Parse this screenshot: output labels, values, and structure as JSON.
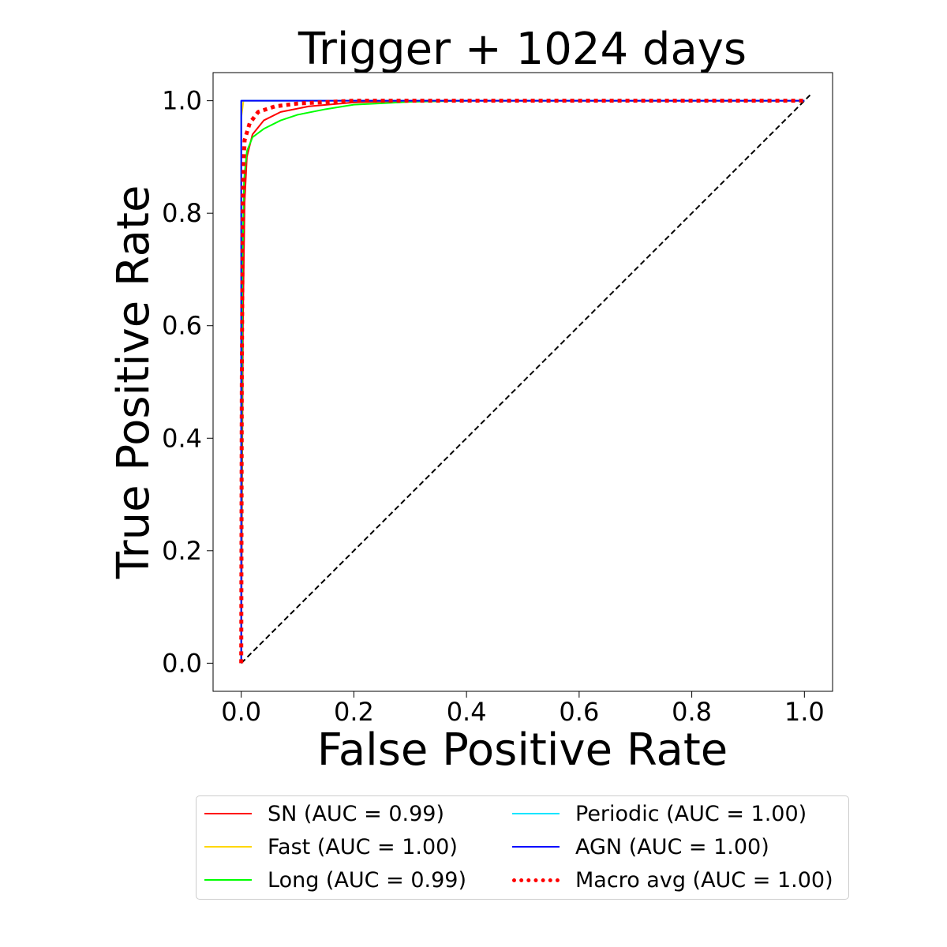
{
  "chart_data": {
    "type": "line",
    "title": "Trigger + 1024 days",
    "xlabel": "False Positive Rate",
    "ylabel": "True Positive Rate",
    "xlim": [
      -0.05,
      1.05
    ],
    "ylim": [
      -0.05,
      1.05
    ],
    "xticks": [
      0.0,
      0.2,
      0.4,
      0.6,
      0.8,
      1.0
    ],
    "xtick_labels": [
      "0.0",
      "0.2",
      "0.4",
      "0.6",
      "0.8",
      "1.0"
    ],
    "yticks": [
      0.0,
      0.2,
      0.4,
      0.6,
      0.8,
      1.0
    ],
    "ytick_labels": [
      "0.0",
      "0.2",
      "0.4",
      "0.6",
      "0.8",
      "1.0"
    ],
    "grid": false,
    "legend_position": "below",
    "series": [
      {
        "name": "SN (AUC = 0.99)",
        "color": "#ff0000",
        "style": "solid",
        "points": [
          [
            0,
            0
          ],
          [
            0.003,
            0.6
          ],
          [
            0.006,
            0.82
          ],
          [
            0.01,
            0.9
          ],
          [
            0.02,
            0.94
          ],
          [
            0.04,
            0.965
          ],
          [
            0.07,
            0.98
          ],
          [
            0.12,
            0.99
          ],
          [
            0.2,
            0.997
          ],
          [
            0.3,
            1.0
          ],
          [
            1.0,
            1.0
          ]
        ]
      },
      {
        "name": "Fast (AUC = 1.00)",
        "color": "#ffd700",
        "style": "solid",
        "points": [
          [
            0,
            0
          ],
          [
            0,
            0.97
          ],
          [
            0.004,
            1.0
          ],
          [
            1.0,
            1.0
          ]
        ]
      },
      {
        "name": "Long (AUC = 0.99)",
        "color": "#00ff00",
        "style": "solid",
        "points": [
          [
            0,
            0
          ],
          [
            0.002,
            0.7
          ],
          [
            0.005,
            0.86
          ],
          [
            0.01,
            0.91
          ],
          [
            0.02,
            0.935
          ],
          [
            0.04,
            0.95
          ],
          [
            0.07,
            0.965
          ],
          [
            0.1,
            0.975
          ],
          [
            0.15,
            0.985
          ],
          [
            0.2,
            0.993
          ],
          [
            0.3,
            0.998
          ],
          [
            0.4,
            1.0
          ],
          [
            1.0,
            1.0
          ]
        ]
      },
      {
        "name": "Periodic (AUC = 1.00)",
        "color": "#00e5ff",
        "style": "solid",
        "points": [
          [
            0,
            0
          ],
          [
            0,
            1.0
          ],
          [
            1.0,
            1.0
          ]
        ]
      },
      {
        "name": "AGN (AUC = 1.00)",
        "color": "#0000ff",
        "style": "solid",
        "points": [
          [
            0,
            0
          ],
          [
            0,
            1.0
          ],
          [
            1.0,
            1.0
          ]
        ]
      },
      {
        "name": "Macro avg (AUC = 1.00)",
        "color": "#ff0000",
        "style": "dotted",
        "points": [
          [
            0,
            0
          ],
          [
            0.001,
            0.5
          ],
          [
            0.003,
            0.85
          ],
          [
            0.006,
            0.93
          ],
          [
            0.015,
            0.96
          ],
          [
            0.03,
            0.98
          ],
          [
            0.06,
            0.99
          ],
          [
            0.1,
            0.995
          ],
          [
            0.2,
            1.0
          ],
          [
            1.0,
            1.0
          ]
        ]
      }
    ],
    "reference_line": {
      "color": "#000000",
      "style": "dashed",
      "points": [
        [
          0,
          0
        ],
        [
          1.01,
          1.01
        ]
      ]
    }
  }
}
